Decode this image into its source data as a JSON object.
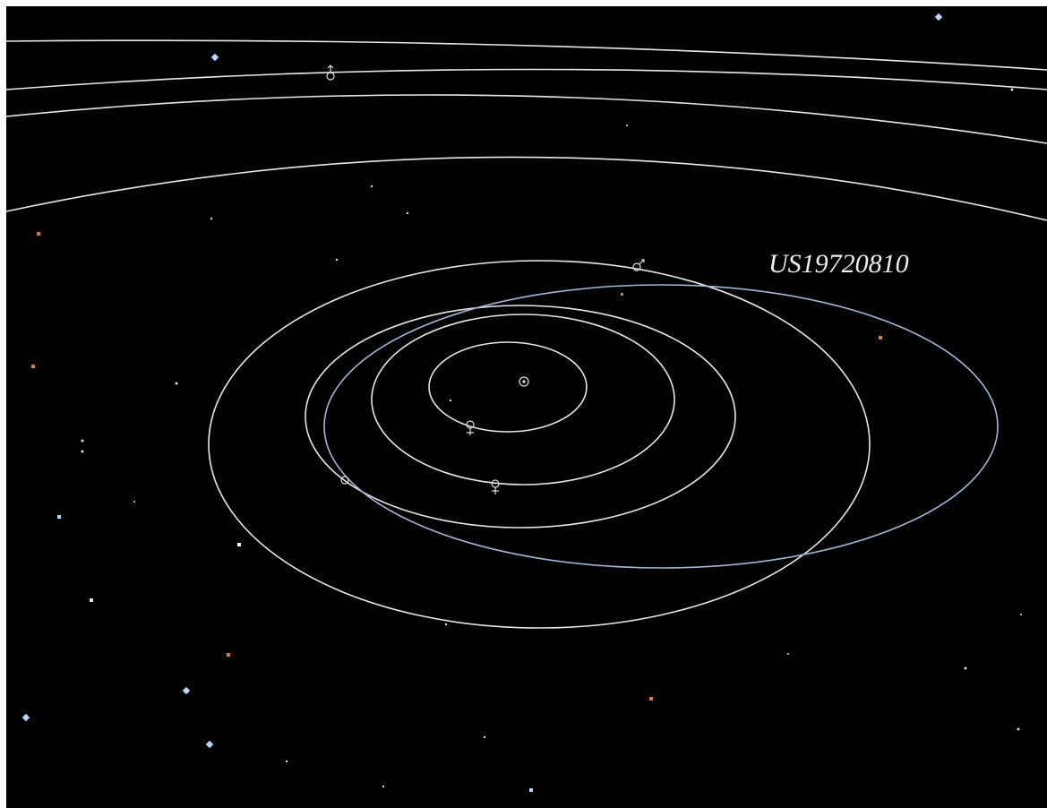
{
  "label": "US19720810"
}
